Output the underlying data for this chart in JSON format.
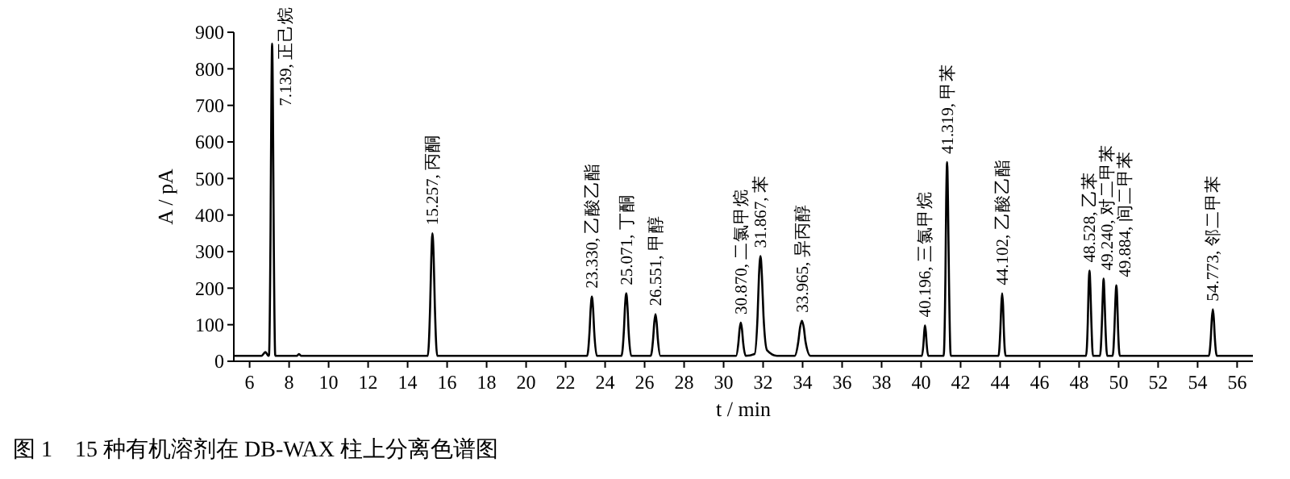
{
  "chart_data": {
    "type": "line",
    "title": "图 1　15 种有机溶剂在 DB-WAX 柱上分离色谱图",
    "xlabel": "t / min",
    "ylabel": "A / pA",
    "xlim": [
      5.2,
      56.8
    ],
    "ylim": [
      0,
      900
    ],
    "xticks": [
      6,
      8,
      10,
      12,
      14,
      16,
      18,
      20,
      22,
      24,
      26,
      28,
      30,
      32,
      34,
      36,
      38,
      40,
      42,
      44,
      46,
      48,
      50,
      52,
      54,
      56
    ],
    "yticks": [
      0,
      100,
      200,
      300,
      400,
      500,
      600,
      700,
      800,
      900
    ],
    "grid": false,
    "marker": "none",
    "line_style": "solid",
    "series": [
      {
        "color": "#000000",
        "x": [
          5.2,
          6.6,
          6.8,
          6.95,
          6.98,
          7.06,
          7.1,
          7.139,
          7.18,
          7.22,
          7.3,
          8.4,
          8.5,
          8.6,
          15.02,
          15.14,
          15.2,
          15.257,
          15.32,
          15.38,
          15.5,
          23.09,
          23.21,
          23.27,
          23.33,
          23.39,
          23.45,
          23.58,
          24.83,
          24.95,
          25.01,
          25.071,
          25.13,
          25.19,
          25.32,
          26.31,
          26.43,
          26.49,
          26.551,
          26.61,
          26.67,
          26.8,
          30.63,
          30.75,
          30.81,
          30.87,
          30.93,
          30.99,
          31.12,
          31.57,
          31.72,
          31.79,
          31.867,
          31.94,
          32.02,
          32.2,
          32.7,
          33.6,
          33.78,
          33.87,
          33.965,
          34.06,
          34.15,
          34.4,
          40.04,
          40.12,
          40.16,
          40.196,
          40.24,
          40.28,
          40.36,
          41.14,
          41.23,
          41.27,
          41.319,
          41.36,
          41.41,
          41.5,
          43.92,
          44.01,
          44.06,
          44.102,
          44.15,
          44.19,
          44.28,
          48.35,
          48.44,
          48.48,
          48.528,
          48.57,
          48.62,
          48.7,
          49.06,
          49.15,
          49.2,
          49.24,
          49.28,
          49.33,
          49.42,
          49.7,
          49.79,
          49.84,
          49.884,
          49.93,
          49.97,
          50.06,
          54.57,
          54.67,
          54.72,
          54.773,
          54.82,
          54.87,
          54.97,
          56.8
        ],
        "values": [
          15,
          15,
          25,
          15,
          15,
          357,
          698,
          869,
          698,
          357,
          15,
          15,
          20,
          15,
          15,
          149,
          283,
          350,
          283,
          149,
          15,
          15,
          80,
          145,
          177,
          145,
          80,
          15,
          15,
          83,
          152,
          186,
          152,
          83,
          15,
          15,
          61,
          106,
          129,
          106,
          61,
          15,
          15,
          51,
          88,
          106,
          88,
          51,
          15,
          20,
          124,
          233,
          288,
          233,
          124,
          30,
          15,
          15,
          53,
          92,
          111,
          92,
          53,
          15,
          15,
          48,
          81,
          98,
          81,
          48,
          15,
          15,
          227,
          439,
          545,
          439,
          227,
          15,
          15,
          83,
          152,
          186,
          152,
          83,
          15,
          15,
          108,
          201,
          248,
          201,
          108,
          15,
          15,
          99,
          184,
          226,
          184,
          99,
          15,
          15,
          92,
          169,
          208,
          169,
          92,
          15,
          15,
          66,
          117,
          142,
          117,
          66,
          15,
          15
        ]
      }
    ],
    "annotations": [
      {
        "text": "7.139, 正己烷",
        "x": 7.139,
        "y": 869
      },
      {
        "text": "15.257, 丙酮",
        "x": 15.257,
        "y": 350
      },
      {
        "text": "23.330, 乙酸乙酯",
        "x": 23.33,
        "y": 177
      },
      {
        "text": "25.071, 丁酮",
        "x": 25.071,
        "y": 186
      },
      {
        "text": "26.551, 甲醇",
        "x": 26.551,
        "y": 129
      },
      {
        "text": "30.870, 二氯甲烷",
        "x": 30.87,
        "y": 106
      },
      {
        "text": "31.867, 苯",
        "x": 31.867,
        "y": 288
      },
      {
        "text": "33.965, 异丙醇",
        "x": 33.965,
        "y": 111
      },
      {
        "text": "40.196, 三氯甲烷",
        "x": 40.196,
        "y": 98
      },
      {
        "text": "41.319, 甲苯",
        "x": 41.319,
        "y": 545
      },
      {
        "text": "44.102, 乙酸乙酯",
        "x": 44.102,
        "y": 186
      },
      {
        "text": "48.528, 乙苯",
        "x": 48.528,
        "y": 248
      },
      {
        "text": "49.240, 对二甲苯",
        "x": 49.24,
        "y": 226
      },
      {
        "text": "49.884, 间二甲苯",
        "x": 49.884,
        "y": 208
      },
      {
        "text": "54.773, 邻二甲苯",
        "x": 54.773,
        "y": 142
      }
    ]
  }
}
